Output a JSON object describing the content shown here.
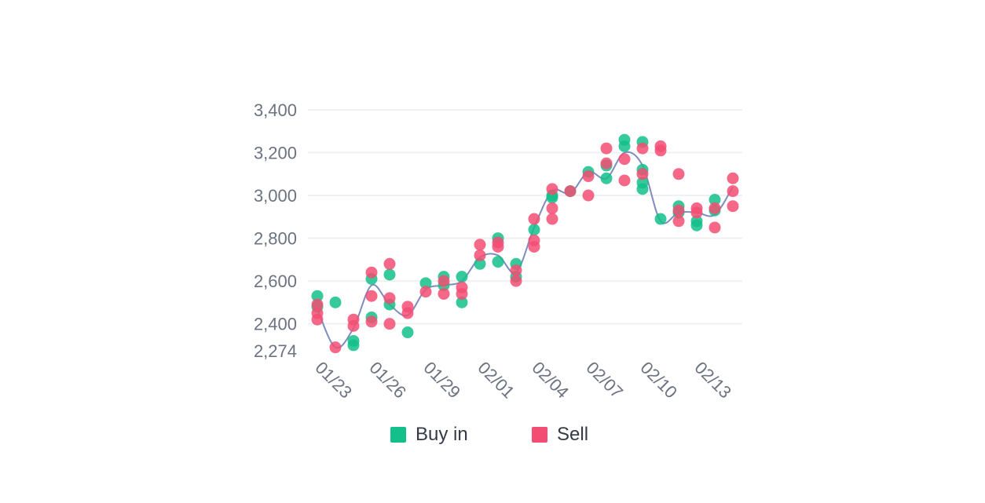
{
  "colors": {
    "buy": "#13bf8a",
    "sell": "#f34d73",
    "line": "#7e8cc0",
    "grid": "#eef0f3",
    "tick": "#6b7280"
  },
  "chart_data": {
    "type": "scatter",
    "x_dates": [
      "01/23",
      "01/24",
      "01/25",
      "01/26",
      "01/27",
      "01/28",
      "01/29",
      "01/30",
      "01/31",
      "02/01",
      "02/02",
      "02/03",
      "02/04",
      "02/05",
      "02/06",
      "02/07",
      "02/08",
      "02/09",
      "02/10",
      "02/11",
      "02/12",
      "02/13",
      "02/14",
      "02/15"
    ],
    "x_tick_labels": [
      "01/23",
      "01/26",
      "01/29",
      "02/01",
      "02/04",
      "02/07",
      "02/10",
      "02/13"
    ],
    "y_tick_labels": [
      "3,400",
      "3,200",
      "3,000",
      "2,800",
      "2,600",
      "2,400",
      "2,274"
    ],
    "y_ticks": [
      3400,
      3200,
      3000,
      2800,
      2600,
      2400,
      2274
    ],
    "ylim": [
      2274,
      3400
    ],
    "grid": true,
    "legend_position": "bottom",
    "trend_line": [
      [
        "01/23",
        2470
      ],
      [
        "01/24",
        2290
      ],
      [
        "01/25",
        2380
      ],
      [
        "01/26",
        2580
      ],
      [
        "01/27",
        2490
      ],
      [
        "01/28",
        2440
      ],
      [
        "01/29",
        2560
      ],
      [
        "01/30",
        2580
      ],
      [
        "01/31",
        2600
      ],
      [
        "02/01",
        2710
      ],
      [
        "02/02",
        2720
      ],
      [
        "02/03",
        2640
      ],
      [
        "02/04",
        2850
      ],
      [
        "02/05",
        3020
      ],
      [
        "02/06",
        3010
      ],
      [
        "02/07",
        3110
      ],
      [
        "02/08",
        3080
      ],
      [
        "02/09",
        3200
      ],
      [
        "02/10",
        3140
      ],
      [
        "02/11",
        2880
      ],
      [
        "02/12",
        2920
      ],
      [
        "02/13",
        2920
      ],
      [
        "02/14",
        2910
      ],
      [
        "02/15",
        3040
      ]
    ],
    "series": [
      {
        "name": "Buy in",
        "points": [
          [
            "01/23",
            2530
          ],
          [
            "01/23",
            2480
          ],
          [
            "01/24",
            2500
          ],
          [
            "01/25",
            2300
          ],
          [
            "01/25",
            2320
          ],
          [
            "01/26",
            2610
          ],
          [
            "01/26",
            2430
          ],
          [
            "01/27",
            2630
          ],
          [
            "01/27",
            2490
          ],
          [
            "01/28",
            2360
          ],
          [
            "01/29",
            2590
          ],
          [
            "01/30",
            2620
          ],
          [
            "01/30",
            2580
          ],
          [
            "01/31",
            2620
          ],
          [
            "01/31",
            2500
          ],
          [
            "02/01",
            2680
          ],
          [
            "02/02",
            2800
          ],
          [
            "02/02",
            2690
          ],
          [
            "02/03",
            2680
          ],
          [
            "02/03",
            2620
          ],
          [
            "02/04",
            2840
          ],
          [
            "02/05",
            3000
          ],
          [
            "02/05",
            2990
          ],
          [
            "02/06",
            3020
          ],
          [
            "02/07",
            3110
          ],
          [
            "02/08",
            3140
          ],
          [
            "02/08",
            3080
          ],
          [
            "02/09",
            3260
          ],
          [
            "02/09",
            3230
          ],
          [
            "02/10",
            3250
          ],
          [
            "02/10",
            3120
          ],
          [
            "02/10",
            3060
          ],
          [
            "02/10",
            3030
          ],
          [
            "02/11",
            2890
          ],
          [
            "02/12",
            2950
          ],
          [
            "02/12",
            2920
          ],
          [
            "02/13",
            2880
          ],
          [
            "02/13",
            2860
          ],
          [
            "02/14",
            2980
          ],
          [
            "02/14",
            2930
          ]
        ]
      },
      {
        "name": "Sell",
        "points": [
          [
            "01/23",
            2490
          ],
          [
            "01/23",
            2450
          ],
          [
            "01/23",
            2420
          ],
          [
            "01/24",
            2290
          ],
          [
            "01/25",
            2420
          ],
          [
            "01/25",
            2390
          ],
          [
            "01/26",
            2640
          ],
          [
            "01/26",
            2530
          ],
          [
            "01/26",
            2410
          ],
          [
            "01/27",
            2680
          ],
          [
            "01/27",
            2520
          ],
          [
            "01/27",
            2400
          ],
          [
            "01/28",
            2480
          ],
          [
            "01/28",
            2450
          ],
          [
            "01/29",
            2550
          ],
          [
            "01/30",
            2600
          ],
          [
            "01/30",
            2540
          ],
          [
            "01/31",
            2570
          ],
          [
            "01/31",
            2540
          ],
          [
            "02/01",
            2770
          ],
          [
            "02/01",
            2720
          ],
          [
            "02/02",
            2780
          ],
          [
            "02/02",
            2760
          ],
          [
            "02/03",
            2650
          ],
          [
            "02/03",
            2600
          ],
          [
            "02/04",
            2890
          ],
          [
            "02/04",
            2790
          ],
          [
            "02/04",
            2760
          ],
          [
            "02/05",
            3030
          ],
          [
            "02/05",
            2940
          ],
          [
            "02/05",
            2890
          ],
          [
            "02/06",
            3020
          ],
          [
            "02/07",
            3090
          ],
          [
            "02/07",
            3000
          ],
          [
            "02/08",
            3220
          ],
          [
            "02/08",
            3150
          ],
          [
            "02/09",
            3170
          ],
          [
            "02/09",
            3070
          ],
          [
            "02/10",
            3220
          ],
          [
            "02/10",
            3100
          ],
          [
            "02/11",
            3230
          ],
          [
            "02/11",
            3210
          ],
          [
            "02/12",
            3100
          ],
          [
            "02/12",
            2930
          ],
          [
            "02/12",
            2880
          ],
          [
            "02/13",
            2940
          ],
          [
            "02/13",
            2920
          ],
          [
            "02/14",
            2940
          ],
          [
            "02/14",
            2850
          ],
          [
            "02/15",
            3080
          ],
          [
            "02/15",
            3020
          ],
          [
            "02/15",
            2950
          ]
        ]
      }
    ]
  }
}
